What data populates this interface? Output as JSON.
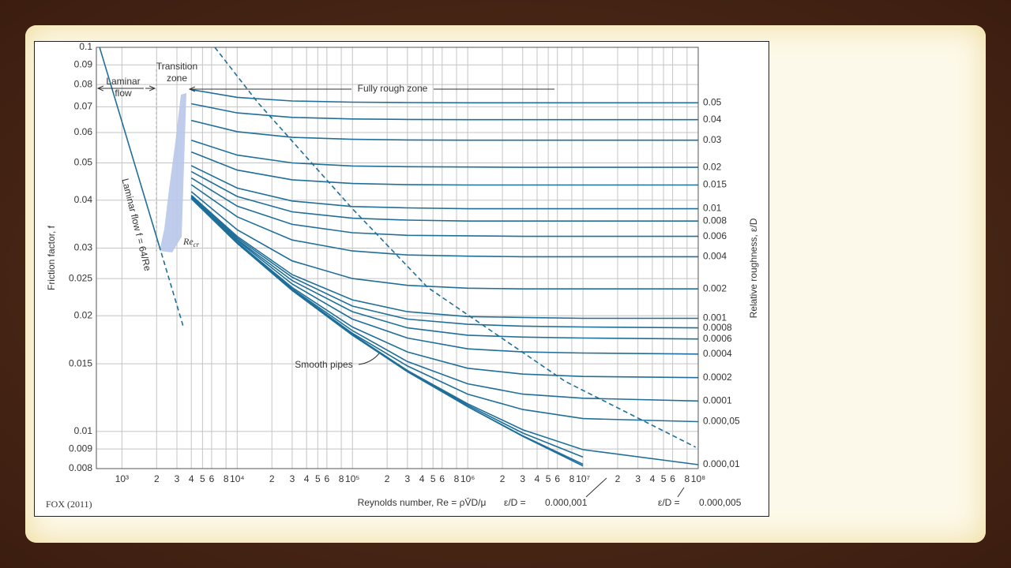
{
  "chart_data": {
    "type": "line",
    "xscale": "log",
    "yscale": "log",
    "grid": true,
    "color": "#1f6f99",
    "x_label": "Reynolds number, Re = ρV̄D/μ",
    "y_label": "Friction factor, f",
    "y2_label": "Relative roughness, ε/D",
    "source": "FOX (2011)",
    "annotations": {
      "laminar": [
        "Laminar",
        "flow"
      ],
      "transition": [
        "Transition",
        "zone"
      ],
      "fully_rough": "Fully rough zone",
      "re_critical": [
        "Re",
        "cr"
      ],
      "laminar_formula": "Laminar flow f = 64/Re",
      "eq_prefix": [
        "ε/D =",
        "ε/D ="
      ]
    },
    "xlim": [
      600,
      100000000
    ],
    "ylim": [
      0.008,
      0.1
    ],
    "xticks": [
      {
        "value": 1000,
        "label": "10³"
      },
      {
        "value": 2000,
        "label": "2"
      },
      {
        "value": 3000,
        "label": "3"
      },
      {
        "value": 4000,
        "label": "4"
      },
      {
        "value": 5000,
        "label": "5"
      },
      {
        "value": 6000,
        "label": "6"
      },
      {
        "value": 8000,
        "label": "8"
      },
      {
        "value": 10000,
        "label": "10⁴"
      },
      {
        "value": 20000,
        "label": "2"
      },
      {
        "value": 30000,
        "label": "3"
      },
      {
        "value": 40000,
        "label": "4"
      },
      {
        "value": 50000,
        "label": "5"
      },
      {
        "value": 60000,
        "label": "6"
      },
      {
        "value": 80000,
        "label": "8"
      },
      {
        "value": 100000,
        "label": "10⁵"
      },
      {
        "value": 200000,
        "label": "2"
      },
      {
        "value": 300000,
        "label": "3"
      },
      {
        "value": 400000,
        "label": "4"
      },
      {
        "value": 500000,
        "label": "5"
      },
      {
        "value": 600000,
        "label": "6"
      },
      {
        "value": 800000,
        "label": "8"
      },
      {
        "value": 1000000,
        "label": "10⁶"
      },
      {
        "value": 2000000,
        "label": "2"
      },
      {
        "value": 3000000,
        "label": "3"
      },
      {
        "value": 4000000,
        "label": "4"
      },
      {
        "value": 5000000,
        "label": "5"
      },
      {
        "value": 6000000,
        "label": "6"
      },
      {
        "value": 8000000,
        "label": "8"
      },
      {
        "value": 10000000,
        "label": "10⁷"
      },
      {
        "value": 20000000,
        "label": "2"
      },
      {
        "value": 30000000,
        "label": "3"
      },
      {
        "value": 40000000,
        "label": "4"
      },
      {
        "value": 50000000,
        "label": "5"
      },
      {
        "value": 60000000,
        "label": "6"
      },
      {
        "value": 80000000,
        "label": "8"
      },
      {
        "value": 100000000,
        "label": "10⁸"
      }
    ],
    "yticks": [
      0.008,
      0.009,
      0.01,
      0.015,
      0.02,
      0.025,
      0.03,
      0.04,
      0.05,
      0.06,
      0.07,
      0.08,
      0.09,
      0.1
    ],
    "x": [
      4000,
      10000,
      30000,
      100000,
      300000,
      1000000,
      3000000,
      10000000,
      100000000
    ],
    "series": [
      {
        "name": "0.05",
        "values": [
          0.0776,
          0.0741,
          0.0725,
          0.072,
          0.0718,
          0.0717,
          0.0717,
          0.0717,
          0.0717
        ]
      },
      {
        "name": "0.04",
        "values": [
          0.0713,
          0.0675,
          0.0657,
          0.0651,
          0.0649,
          0.0648,
          0.0648,
          0.0648,
          0.0648
        ]
      },
      {
        "name": "0.03",
        "values": [
          0.0645,
          0.0603,
          0.0583,
          0.0576,
          0.0574,
          0.0573,
          0.0573,
          0.0573,
          0.0573
        ]
      },
      {
        "name": "0.02",
        "values": [
          0.0573,
          0.0524,
          0.05,
          0.0491,
          0.0489,
          0.0488,
          0.0487,
          0.0487,
          0.0487
        ]
      },
      {
        "name": "0.015",
        "values": [
          0.0534,
          0.0479,
          0.0452,
          0.0442,
          0.0439,
          0.0438,
          0.0438,
          0.0438,
          0.0438
        ]
      },
      {
        "name": "0.01",
        "values": [
          0.0492,
          0.043,
          0.0398,
          0.0385,
          0.0382,
          0.038,
          0.038,
          0.038,
          0.038
        ]
      },
      {
        "name": "0.008",
        "values": [
          0.0475,
          0.0409,
          0.0373,
          0.0359,
          0.0355,
          0.0353,
          0.0353,
          0.0353,
          0.0353
        ]
      },
      {
        "name": "0.006",
        "values": [
          0.0457,
          0.0386,
          0.0346,
          0.0329,
          0.0324,
          0.0323,
          0.0322,
          0.0322,
          0.0322
        ]
      },
      {
        "name": "0.004",
        "values": [
          0.0439,
          0.0362,
          0.0315,
          0.0295,
          0.0288,
          0.0286,
          0.0285,
          0.0285,
          0.0285
        ]
      },
      {
        "name": "0.002",
        "values": [
          0.0421,
          0.0335,
          0.0278,
          0.025,
          0.024,
          0.0236,
          0.0235,
          0.0235,
          0.0235
        ]
      },
      {
        "name": "0.001",
        "values": [
          0.0412,
          0.0322,
          0.0256,
          0.022,
          0.0205,
          0.0199,
          0.0198,
          0.0197,
          0.0197
        ]
      },
      {
        "name": "0.0008",
        "values": [
          0.041,
          0.0319,
          0.0252,
          0.0212,
          0.0196,
          0.019,
          0.0188,
          0.0187,
          0.0186
        ]
      },
      {
        "name": "0.0006",
        "values": [
          0.0409,
          0.0316,
          0.0247,
          0.0205,
          0.0186,
          0.0178,
          0.0176,
          0.0175,
          0.0174
        ]
      },
      {
        "name": "0.0004",
        "values": [
          0.0407,
          0.0314,
          0.0242,
          0.0196,
          0.0175,
          0.0164,
          0.0161,
          0.016,
          0.0159
        ]
      },
      {
        "name": "0.0002",
        "values": [
          0.0406,
          0.0311,
          0.0237,
          0.0187,
          0.0161,
          0.0146,
          0.0141,
          0.0139,
          0.0138
        ]
      },
      {
        "name": "0.0001",
        "values": [
          0.0405,
          0.031,
          0.0235,
          0.0183,
          0.0152,
          0.0133,
          0.0125,
          0.0122,
          0.012
        ]
      },
      {
        "name": "0.000,05",
        "values": [
          0.0405,
          0.0309,
          0.0234,
          0.018,
          0.0148,
          0.0125,
          0.0114,
          0.0108,
          0.0106
        ]
      },
      {
        "name": "0.000,01",
        "values": [
          0.0404,
          0.0309,
          0.0233,
          0.0179,
          0.0144,
          0.0118,
          0.0101,
          0.00896,
          0.00819
        ]
      },
      {
        "name": "0.000,005",
        "values": [
          0.0404,
          0.0309,
          0.0233,
          0.0178,
          0.0144,
          0.0117,
          0.0099,
          0.00857,
          null
        ]
      },
      {
        "name": "0.000,001",
        "values": [
          0.0404,
          0.0309,
          0.0233,
          0.0178,
          0.0144,
          0.0116,
          0.00974,
          0.00821,
          null
        ]
      },
      {
        "name": "Smooth pipes",
        "values": [
          0.0404,
          0.0309,
          0.0233,
          0.0178,
          0.0143,
          0.0116,
          0.00971,
          0.00813,
          null
        ]
      },
      {
        "x": [
          640,
          2100
        ],
        "values": [
          0.1,
          0.0305
        ],
        "style": "solid"
      },
      {
        "x": [
          2100,
          3400
        ],
        "values": [
          0.0305,
          0.0188
        ],
        "style": "dashed"
      },
      {
        "x": [
          6400,
          15000,
          100000,
          450000,
          7000000,
          95000000
        ],
        "values": [
          0.1,
          0.072,
          0.038,
          0.0237,
          0.0135,
          0.0091
        ],
        "style": "dashed"
      }
    ]
  }
}
